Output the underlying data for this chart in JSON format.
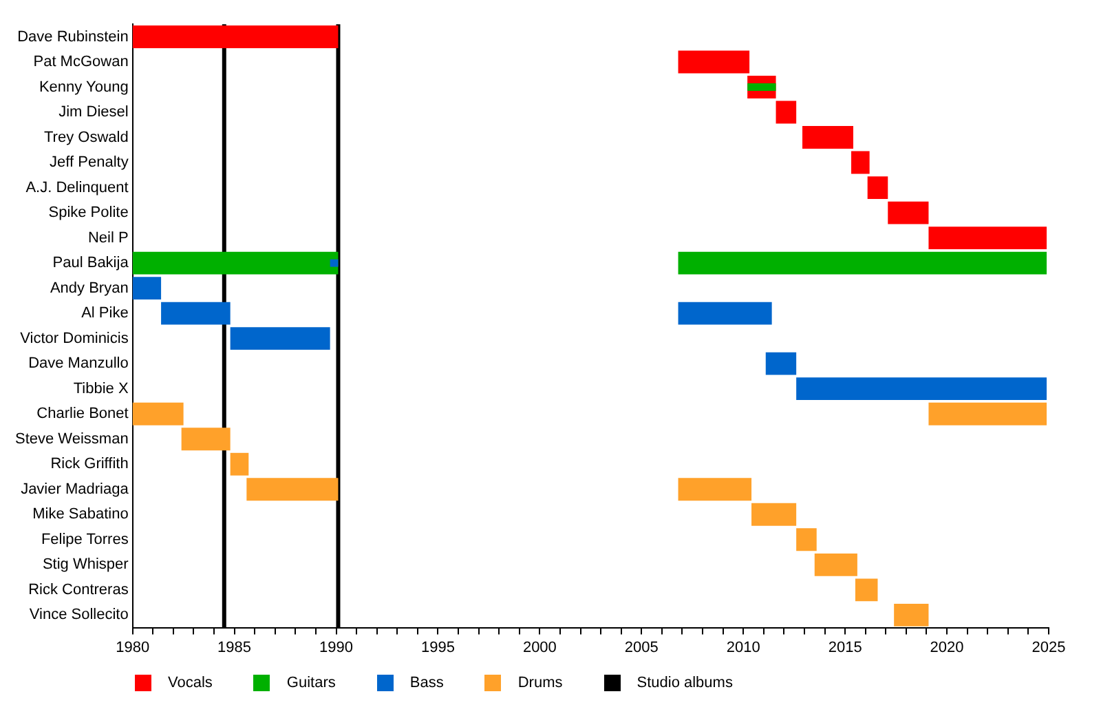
{
  "chart_data": {
    "type": "bar",
    "orientation": "horizontal",
    "stacked": false,
    "legend": "bottom",
    "categories": [
      "Dave Rubinstein",
      "Pat McGowan",
      "Kenny Young",
      "Jim Diesel",
      "Trey Oswald",
      "Jeff Penalty",
      "A.J. Delinquent",
      "Spike Polite",
      "Neil P",
      "Paul Bakija",
      "Andy Bryan",
      "Al Pike",
      "Victor Dominicis",
      "Dave Manzullo",
      "Tibbie X",
      "Charlie Bonet",
      "Steve Weissman",
      "Rick Griffith",
      "Javier Madriaga",
      "Mike Sabatino",
      "Felipe Torres",
      "Stig Whisper",
      "Rick Contreras",
      "Vince Sollecito"
    ],
    "series": [
      {
        "name": "Vocals",
        "color": "#ff0000",
        "values": [
          10.1,
          3.5,
          1.4,
          1.0,
          2.5,
          0.9,
          1.0,
          2.0,
          5.8,
          null,
          null,
          null,
          null,
          null,
          null,
          null,
          null,
          null,
          null,
          null,
          null,
          null,
          null,
          null
        ],
        "base": [
          1980,
          2006.8,
          2010.2,
          2011.6,
          2012.9,
          2015.3,
          2016.1,
          2017.1,
          2019.1,
          null,
          null,
          null,
          null,
          null,
          null,
          null,
          null,
          null,
          null,
          null,
          null,
          null,
          null,
          null
        ]
      },
      {
        "name": "Guitars",
        "color": "#00b000",
        "values": [
          null,
          null,
          null,
          null,
          null,
          null,
          null,
          null,
          null,
          10.1,
          null,
          null,
          null,
          null,
          null,
          null,
          null,
          null,
          null,
          null,
          null,
          null,
          null,
          null
        ],
        "base": [
          null,
          null,
          null,
          null,
          null,
          null,
          null,
          null,
          null,
          1980,
          null,
          null,
          null,
          null,
          null,
          null,
          null,
          null,
          null,
          null,
          null,
          null,
          null,
          null
        ]
      },
      {
        "name": "Bass",
        "color": "#0066cc",
        "values": [
          null,
          null,
          null,
          null,
          null,
          null,
          null,
          null,
          null,
          null,
          1.4,
          3.4,
          4.9,
          1.5,
          12.3,
          null,
          null,
          null,
          null,
          null,
          null,
          null,
          null,
          null
        ],
        "base": [
          null,
          null,
          null,
          null,
          null,
          null,
          null,
          null,
          null,
          null,
          1980,
          1981.4,
          1984.8,
          2011.1,
          2012.6,
          null,
          null,
          null,
          null,
          null,
          null,
          null,
          null,
          null
        ]
      },
      {
        "name": "Drums",
        "color": "#ffa12a",
        "values": [
          null,
          null,
          null,
          null,
          null,
          null,
          null,
          null,
          null,
          null,
          null,
          null,
          null,
          null,
          null,
          2.5,
          2.4,
          0.9,
          4.5,
          2.2,
          1.0,
          2.1,
          1.1,
          1.7
        ],
        "base": [
          null,
          null,
          null,
          null,
          null,
          null,
          null,
          null,
          null,
          null,
          null,
          null,
          null,
          null,
          null,
          1980,
          1982.4,
          1984.8,
          1985.6,
          2010.4,
          2012.6,
          2013.5,
          2015.5,
          2017.4
        ]
      },
      {
        "color": "#00b000",
        "values": [
          null,
          null,
          null,
          null,
          null,
          null,
          null,
          null,
          null,
          18.1,
          null,
          null,
          null,
          null,
          null,
          null,
          null,
          null,
          null,
          null,
          null,
          null,
          null,
          null
        ],
        "base": [
          null,
          null,
          null,
          null,
          null,
          null,
          null,
          null,
          null,
          2006.8,
          null,
          null,
          null,
          null,
          null,
          null,
          null,
          null,
          null,
          null,
          null,
          null,
          null,
          null
        ]
      },
      {
        "color": "#0066cc",
        "values": [
          null,
          null,
          null,
          null,
          null,
          null,
          null,
          null,
          null,
          null,
          null,
          4.6,
          null,
          null,
          null,
          null,
          null,
          null,
          null,
          null,
          null,
          null,
          null,
          null
        ],
        "base": [
          null,
          null,
          null,
          null,
          null,
          null,
          null,
          null,
          null,
          null,
          null,
          2006.8,
          null,
          null,
          null,
          null,
          null,
          null,
          null,
          null,
          null,
          null,
          null,
          null
        ]
      },
      {
        "color": "#ffa12a",
        "values": [
          null,
          null,
          null,
          null,
          null,
          null,
          null,
          null,
          null,
          null,
          null,
          null,
          null,
          null,
          null,
          5.8,
          null,
          null,
          3.6,
          null,
          null,
          null,
          null,
          null
        ],
        "base": [
          null,
          null,
          null,
          null,
          null,
          null,
          null,
          null,
          null,
          null,
          null,
          null,
          null,
          null,
          null,
          2019.1,
          null,
          null,
          2006.8,
          null,
          null,
          null,
          null,
          null
        ]
      },
      {
        "color": "#00b000",
        "values": [
          null,
          null,
          1.4,
          null,
          null,
          null,
          null,
          null,
          null,
          null,
          null,
          null,
          null,
          null,
          null,
          null,
          null,
          null,
          null,
          null,
          null,
          null,
          null,
          null
        ],
        "base": [
          null,
          null,
          2010.2,
          null,
          null,
          null,
          null,
          null,
          null,
          null,
          null,
          null,
          null,
          null,
          null,
          null,
          null,
          null,
          null,
          null,
          null,
          null,
          null,
          null
        ]
      },
      {
        "color": "#0066cc",
        "values": [
          null,
          null,
          null,
          null,
          null,
          null,
          null,
          null,
          null,
          0.4,
          null,
          null,
          null,
          null,
          null,
          null,
          null,
          null,
          null,
          null,
          null,
          null,
          null,
          null
        ],
        "base": [
          null,
          null,
          null,
          null,
          null,
          null,
          null,
          null,
          null,
          1989.7,
          null,
          null,
          null,
          null,
          null,
          null,
          null,
          null,
          null,
          null,
          null,
          null,
          null,
          null
        ]
      }
    ],
    "ref_lines": [
      {
        "axis": "x",
        "value": 1984.5,
        "label": "Studio albums",
        "color": "#000000"
      },
      {
        "axis": "x",
        "value": 1990.1,
        "color": "#000000"
      }
    ],
    "xlim": [
      1980,
      2025
    ],
    "xticks": [
      1980,
      {
        "value": 1981,
        "label": null
      },
      {
        "value": 1982,
        "label": null
      },
      {
        "value": 1983,
        "label": null
      },
      {
        "value": 1984,
        "label": null
      },
      1985,
      {
        "value": 1986,
        "label": null
      },
      {
        "value": 1987,
        "label": null
      },
      {
        "value": 1988,
        "label": null
      },
      {
        "value": 1989,
        "label": null
      },
      1990,
      {
        "value": 1991,
        "label": null
      },
      {
        "value": 1992,
        "label": null
      },
      {
        "value": 1993,
        "label": null
      },
      {
        "value": 1994,
        "label": null
      },
      1995,
      {
        "value": 1996,
        "label": null
      },
      {
        "value": 1997,
        "label": null
      },
      {
        "value": 1998,
        "label": null
      },
      {
        "value": 1999,
        "label": null
      },
      2000,
      {
        "value": 2001,
        "label": null
      },
      {
        "value": 2002,
        "label": null
      },
      {
        "value": 2003,
        "label": null
      },
      {
        "value": 2004,
        "label": null
      },
      2005,
      {
        "value": 2006,
        "label": null
      },
      {
        "value": 2007,
        "label": null
      },
      {
        "value": 2008,
        "label": null
      },
      {
        "value": 2009,
        "label": null
      },
      2010,
      {
        "value": 2011,
        "label": null
      },
      {
        "value": 2012,
        "label": null
      },
      {
        "value": 2013,
        "label": null
      },
      {
        "value": 2014,
        "label": null
      },
      2015,
      {
        "value": 2016,
        "label": null
      },
      {
        "value": 2017,
        "label": null
      },
      {
        "value": 2018,
        "label": null
      },
      {
        "value": 2019,
        "label": null
      },
      2020,
      {
        "value": 2021,
        "label": null
      },
      {
        "value": 2022,
        "label": null
      },
      {
        "value": 2023,
        "label": null
      },
      {
        "value": 2024,
        "label": null
      },
      2025
    ],
    "grid": false
  }
}
